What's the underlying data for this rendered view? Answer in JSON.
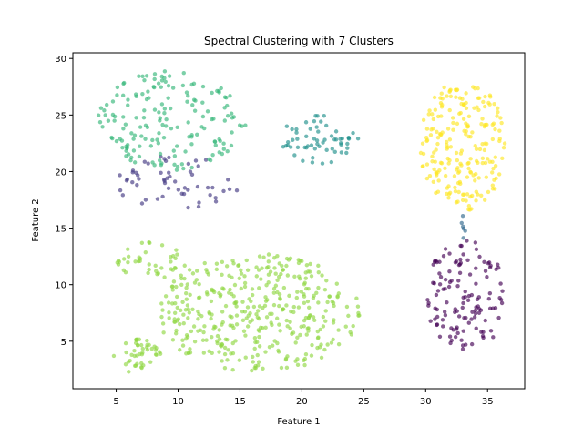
{
  "chart_data": {
    "type": "scatter",
    "title": "Spectral Clustering with 7 Clusters",
    "xlabel": "Feature 1",
    "ylabel": "Feature 2",
    "xlim": [
      1.5,
      38.0
    ],
    "ylim": [
      0.8,
      30.5
    ],
    "xticks": [
      5,
      10,
      15,
      20,
      25,
      30,
      35
    ],
    "yticks": [
      5,
      10,
      15,
      20,
      25,
      30
    ],
    "grid": false,
    "point_alpha": 0.65,
    "clusters": [
      {
        "id": 0,
        "color": "#440154",
        "shape": "ellipse",
        "center": [
          33.3,
          9.0
        ],
        "spread": [
          3.3,
          5.1
        ],
        "n": 130
      },
      {
        "id": 1,
        "color": "#443983",
        "shape": "ellipse",
        "center": [
          10.0,
          19.0
        ],
        "spread": [
          5.5,
          2.4
        ],
        "n": 55
      },
      {
        "id": 2,
        "color": "#31688e",
        "shape": "ellipse",
        "center": [
          33.0,
          15.0
        ],
        "spread": [
          0.3,
          1.3
        ],
        "n": 6
      },
      {
        "id": 3,
        "color": "#21918c",
        "shape": "ellipse",
        "center": [
          21.5,
          23.0
        ],
        "spread": [
          3.4,
          2.3
        ],
        "n": 60
      },
      {
        "id": 4,
        "color": "#35b779",
        "shape": "ellipse",
        "center": [
          9.5,
          24.5
        ],
        "spread": [
          6.0,
          4.4
        ],
        "n": 170
      },
      {
        "id": 5,
        "color": "#90d743",
        "shape": "ellipse",
        "center": [
          16.5,
          7.5
        ],
        "spread": [
          8.2,
          5.2
        ],
        "n": 400
      },
      {
        "id": 6,
        "color": "#90d743",
        "shape": "ellipse",
        "center": [
          7.6,
          12.0
        ],
        "spread": [
          3.0,
          1.8
        ],
        "n": 40
      },
      {
        "id": 7,
        "color": "#90d743",
        "shape": "ellipse",
        "center": [
          6.7,
          3.7
        ],
        "spread": [
          2.0,
          1.5
        ],
        "n": 45
      },
      {
        "id": 8,
        "color": "#fde725",
        "shape": "ellipse",
        "center": [
          33.0,
          22.3
        ],
        "spread": [
          3.5,
          5.8
        ],
        "n": 220
      }
    ]
  }
}
